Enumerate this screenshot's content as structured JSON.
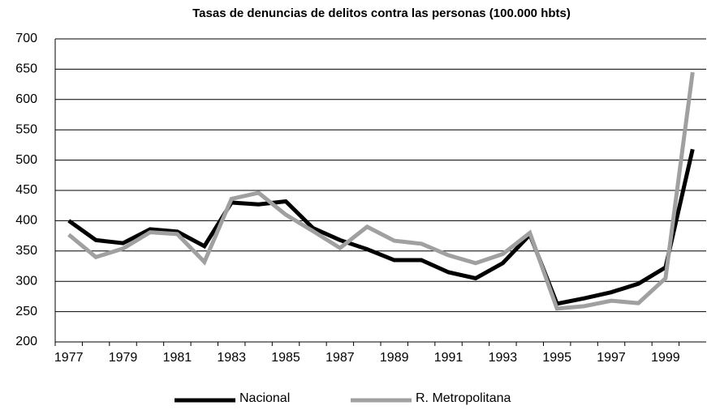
{
  "chart_data": {
    "type": "line",
    "title": "Tasas de denuncias de delitos contra las personas (100.000 hbts)",
    "categories": [
      "1977",
      null,
      "1979",
      null,
      "1981",
      null,
      "1983",
      null,
      "1985",
      null,
      "1987",
      null,
      "1989",
      null,
      "1991",
      null,
      "1993",
      null,
      "1995",
      null,
      "1997",
      null,
      "1999",
      null
    ],
    "series": [
      {
        "name": "Nacional",
        "color": "#000000",
        "values": [
          400,
          368,
          363,
          386,
          382,
          358,
          430,
          427,
          432,
          388,
          368,
          353,
          335,
          335,
          315,
          305,
          330,
          377,
          263,
          272,
          282,
          296,
          323,
          518
        ]
      },
      {
        "name": "R. Metropolitana",
        "color": "#a0a0a0",
        "values": [
          377,
          340,
          354,
          381,
          378,
          332,
          436,
          446,
          410,
          383,
          355,
          390,
          367,
          362,
          343,
          330,
          345,
          380,
          255,
          259,
          268,
          264,
          305,
          645
        ]
      }
    ],
    "ylim": [
      200,
      700
    ],
    "yticks": [
      200,
      250,
      300,
      350,
      400,
      450,
      500,
      550,
      600,
      650,
      700
    ],
    "grid": true,
    "legend": "bottom"
  }
}
